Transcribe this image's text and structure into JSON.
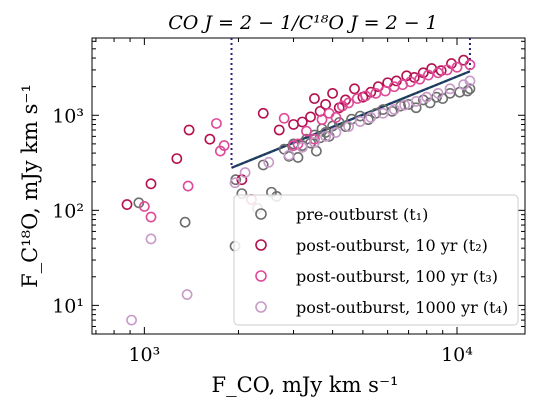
{
  "chart_data": {
    "type": "scatter",
    "title": "CO J = 2 − 1/C¹⁸O J = 2 − 1",
    "xlabel": "F_CO, mJy km s⁻¹",
    "ylabel": "F_C¹⁸O, mJy km s⁻¹",
    "xscale": "log",
    "yscale": "log",
    "xlim": [
      680,
      16500
    ],
    "ylim": [
      5,
      6500
    ],
    "xticks": [
      {
        "value": 1000,
        "label": "10³"
      },
      {
        "value": 10000,
        "label": "10⁴"
      }
    ],
    "yticks": [
      {
        "value": 10,
        "label": "10¹"
      },
      {
        "value": 100,
        "label": "10²"
      },
      {
        "value": 1000,
        "label": "10³"
      }
    ],
    "grid": false,
    "legend_position": "lower-right",
    "colors": {
      "t1": "#6e6e6e",
      "t2": "#b5104e",
      "t3": "#de4a97",
      "t4": "#c79ac7",
      "vlines": "#2e1f7a",
      "fit_line": "#1c4a58"
    },
    "series": [
      {
        "name": "pre-outburst (t₁)",
        "key": "t1",
        "points": [
          [
            960,
            120
          ],
          [
            1350,
            75
          ],
          [
            1950,
            42
          ],
          [
            1960,
            210
          ],
          [
            2050,
            150
          ],
          [
            2200,
            130
          ],
          [
            2300,
            105
          ],
          [
            2400,
            300
          ],
          [
            2550,
            155
          ],
          [
            2650,
            140
          ],
          [
            2800,
            440
          ],
          [
            2900,
            370
          ],
          [
            3000,
            500
          ],
          [
            3100,
            360
          ],
          [
            3200,
            480
          ],
          [
            3300,
            560
          ],
          [
            3400,
            510
          ],
          [
            3500,
            620
          ],
          [
            3550,
            420
          ],
          [
            3650,
            580
          ],
          [
            3700,
            720
          ],
          [
            3800,
            660
          ],
          [
            3900,
            600
          ],
          [
            4000,
            770
          ],
          [
            4200,
            840
          ],
          [
            4400,
            760
          ],
          [
            4600,
            910
          ],
          [
            4900,
            980
          ],
          [
            5200,
            900
          ],
          [
            5500,
            1050
          ],
          [
            5800,
            1150
          ],
          [
            6200,
            1100
          ],
          [
            6600,
            1250
          ],
          [
            7000,
            1300
          ],
          [
            7400,
            1200
          ],
          [
            7800,
            1450
          ],
          [
            8200,
            1350
          ],
          [
            8600,
            1550
          ],
          [
            9000,
            1500
          ],
          [
            9500,
            1700
          ],
          [
            10200,
            1750
          ],
          [
            10800,
            1800
          ],
          [
            11000,
            1900
          ]
        ]
      },
      {
        "name": "post-outburst, 10 yr (t₂)",
        "key": "t2",
        "points": [
          [
            880,
            115
          ],
          [
            1050,
            190
          ],
          [
            1270,
            350
          ],
          [
            1390,
            700
          ],
          [
            1620,
            560
          ],
          [
            2050,
            210
          ],
          [
            2400,
            1050
          ],
          [
            2700,
            700
          ],
          [
            3000,
            800
          ],
          [
            3200,
            850
          ],
          [
            3400,
            960
          ],
          [
            3500,
            1500
          ],
          [
            3650,
            1100
          ],
          [
            3800,
            1300
          ],
          [
            4000,
            1700
          ],
          [
            4200,
            1200
          ],
          [
            4400,
            1450
          ],
          [
            4700,
            1900
          ],
          [
            5000,
            1550
          ],
          [
            5300,
            1750
          ],
          [
            5600,
            2000
          ],
          [
            6000,
            2200
          ],
          [
            6400,
            2300
          ],
          [
            6900,
            2600
          ],
          [
            7300,
            2500
          ],
          [
            7800,
            2800
          ],
          [
            8300,
            3100
          ],
          [
            8900,
            2950
          ],
          [
            9600,
            3500
          ],
          [
            10500,
            3800
          ]
        ]
      },
      {
        "name": "post-outburst, 100 yr (t₃)",
        "key": "t3",
        "points": [
          [
            1000,
            110
          ],
          [
            1050,
            85
          ],
          [
            1380,
            180
          ],
          [
            1700,
            820
          ],
          [
            1750,
            420
          ],
          [
            1800,
            480
          ],
          [
            2200,
            130
          ],
          [
            2800,
            930
          ],
          [
            3000,
            480
          ],
          [
            3100,
            500
          ],
          [
            3300,
            680
          ],
          [
            3500,
            560
          ],
          [
            3700,
            900
          ],
          [
            3900,
            1050
          ],
          [
            4100,
            950
          ],
          [
            4300,
            1250
          ],
          [
            4500,
            1350
          ],
          [
            4800,
            1500
          ],
          [
            5100,
            1600
          ],
          [
            5500,
            1700
          ],
          [
            5900,
            1800
          ],
          [
            6300,
            2000
          ],
          [
            6700,
            2100
          ],
          [
            7100,
            2250
          ],
          [
            7600,
            2400
          ],
          [
            8100,
            2650
          ],
          [
            8700,
            2800
          ],
          [
            9300,
            3000
          ],
          [
            10000,
            3200
          ],
          [
            11000,
            3400
          ]
        ]
      },
      {
        "name": "post-outburst, 1000 yr (t₄)",
        "key": "t4",
        "points": [
          [
            910,
            7
          ],
          [
            1050,
            50
          ],
          [
            1370,
            13
          ],
          [
            1950,
            195
          ],
          [
            2100,
            250
          ],
          [
            2500,
            320
          ],
          [
            2900,
            380
          ],
          [
            3200,
            460
          ],
          [
            3500,
            520
          ],
          [
            3800,
            600
          ],
          [
            4100,
            660
          ],
          [
            4500,
            760
          ],
          [
            4900,
            860
          ],
          [
            5300,
            950
          ],
          [
            5800,
            1050
          ],
          [
            6300,
            1150
          ],
          [
            6800,
            1280
          ],
          [
            7400,
            1400
          ],
          [
            8000,
            1550
          ],
          [
            8700,
            1700
          ],
          [
            9500,
            1900
          ],
          [
            10500,
            2100
          ],
          [
            11000,
            2300
          ]
        ]
      }
    ],
    "vertical_lines": [
      1900,
      11000
    ],
    "fit_line": {
      "x": [
        1900,
        11000
      ],
      "y": [
        280,
        2900
      ]
    }
  }
}
